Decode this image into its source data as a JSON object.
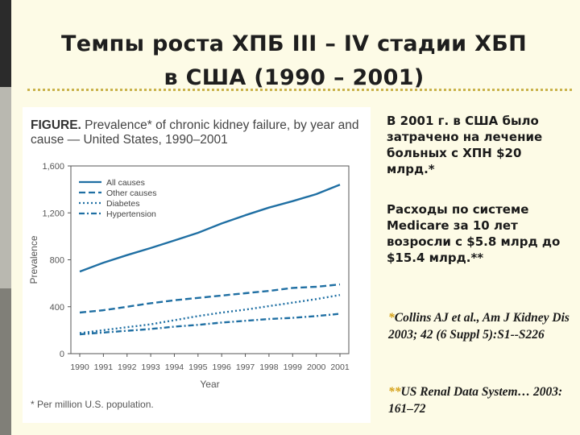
{
  "slide": {
    "title_line1": "Темпы роста ХПБ III – IV стадии ХБП",
    "title_line2": "в США  (1990 – 2001)",
    "text1": "В 2001 г. в США было затрачено на лечение больных с ХПН $20 млрд.*",
    "text2": "Расходы по системе Medicare за 10 лет возросли с $5.8 млрд до $15.4 млрд.**",
    "ref1_mark": "*",
    "ref1": "Collins AJ et al., Am J Kidney Dis 2003; 42 (6 Suppl 5):S1--S226",
    "ref2_mark": "**",
    "ref2": "US Renal Data System… 2003: 161–72"
  },
  "figure": {
    "caption_bold": "FIGURE.",
    "caption_rest": " Prevalence* of chronic kidney failure, by year and cause — United States, 1990–2001",
    "footnote": "* Per million U.S. population."
  },
  "chart_data": {
    "type": "line",
    "x": [
      "1990",
      "1991",
      "1992",
      "1993",
      "1994",
      "1995",
      "1996",
      "1997",
      "1998",
      "1999",
      "2000",
      "2001"
    ],
    "xlabel": "Year",
    "ylabel": "Prevalence",
    "ylim": [
      0,
      1600
    ],
    "yticks": [
      "0",
      "400",
      "800",
      "1,200",
      "1,600"
    ],
    "ytick_values": [
      0,
      400,
      800,
      1200,
      1600
    ],
    "grid": false,
    "legend_position": "top-left",
    "color": "#1f6fa3",
    "series": [
      {
        "name": "All causes",
        "dash": "solid",
        "values": [
          700,
          775,
          840,
          900,
          965,
          1030,
          1110,
          1180,
          1245,
          1300,
          1360,
          1440
        ]
      },
      {
        "name": "Other causes",
        "dash": "dashed",
        "values": [
          350,
          370,
          400,
          430,
          455,
          475,
          495,
          515,
          535,
          560,
          570,
          590
        ]
      },
      {
        "name": "Diabetes",
        "dash": "dotted",
        "values": [
          175,
          200,
          225,
          250,
          285,
          320,
          350,
          375,
          405,
          435,
          465,
          500
        ]
      },
      {
        "name": "Hypertension",
        "dash": "dashdot",
        "values": [
          165,
          180,
          195,
          210,
          230,
          245,
          265,
          280,
          295,
          305,
          320,
          340
        ]
      }
    ]
  }
}
